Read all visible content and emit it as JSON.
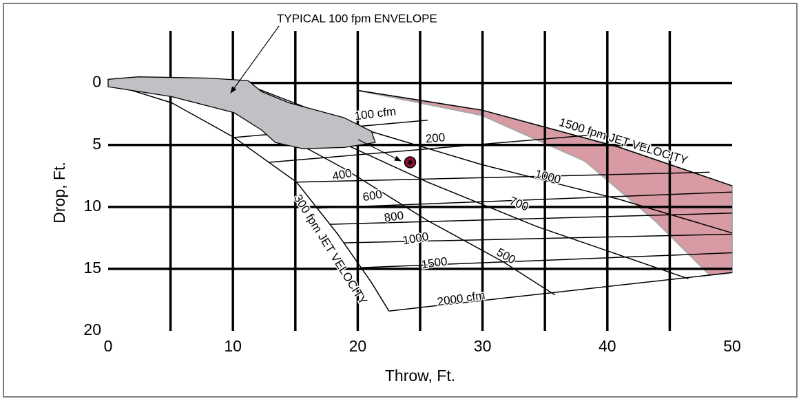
{
  "chart_data": {
    "type": "line",
    "xlabel": "Throw, Ft.",
    "ylabel": "Drop, Ft.",
    "annotation": "TYPICAL 100 fpm ENVELOPE",
    "xlim": [
      0,
      50
    ],
    "ylim": [
      20,
      -4.2
    ],
    "xticks": [
      0,
      10,
      20,
      30,
      40,
      50
    ],
    "yticks": [
      0,
      5,
      10,
      15,
      20
    ],
    "xgrid": [
      5,
      10,
      15,
      20,
      25,
      30,
      35,
      40,
      45
    ],
    "ygrid": [
      0,
      5,
      10,
      15
    ],
    "grid": true,
    "line_color": "#000000",
    "band": {
      "color": "#d89aa3",
      "edge": "#a8a8a8",
      "x": [
        20,
        30,
        41,
        50,
        50,
        48.2,
        43.8,
        38.2,
        29.9
      ],
      "y": [
        0.6,
        2.2,
        5.2,
        8.3,
        15.3,
        15.5,
        11.1,
        6.3,
        2.6
      ]
    },
    "envelope": {
      "color": "#bfc1c4",
      "x": [
        0,
        2.4,
        7.9,
        11.2,
        12.3,
        14.5,
        18.9,
        21.1,
        21.4,
        18.9,
        15.6,
        13.4,
        12.3,
        10.1,
        5.1,
        0
      ],
      "y": [
        -0.3,
        -0.5,
        -0.4,
        -0.2,
        0.7,
        1.6,
        2.8,
        3.9,
        4.8,
        5.2,
        5.3,
        4.8,
        3.8,
        2.4,
        1.1,
        0.3
      ]
    },
    "point": {
      "x": 24.2,
      "y": 6.4,
      "color": "#8b1030"
    },
    "curves": [
      {
        "label": "300 fpm JET VELOCITY",
        "x": [
          0,
          5.1,
          10.1,
          15.1,
          18.4,
          21.1,
          22.5
        ],
        "y": [
          0,
          1.6,
          4.4,
          8,
          12.2,
          16.1,
          18.4
        ]
      },
      {
        "label": "1500 fpm JET VELOCITY",
        "x": [
          20,
          30,
          41,
          50
        ],
        "y": [
          0.6,
          2.2,
          5.2,
          8.3
        ]
      },
      {
        "label": "2000 cfm",
        "x": [
          22.5,
          35.8,
          50
        ],
        "y": [
          18.4,
          16.9,
          15.3
        ]
      },
      {
        "label": "100 cfm",
        "x": [
          10.1,
          25.6
        ],
        "y": [
          4.4,
          3.0
        ]
      },
      {
        "label": "200",
        "x": [
          12.9,
          39.9
        ],
        "y": [
          6.4,
          4.1
        ]
      },
      {
        "label": "400",
        "x": [
          15.1,
          48.2
        ],
        "y": [
          8.0,
          7.2
        ]
      },
      {
        "label": "600",
        "x": [
          16.7,
          50
        ],
        "y": [
          10.1,
          8.8
        ]
      },
      {
        "label": "800",
        "x": [
          17.8,
          50
        ],
        "y": [
          11.4,
          10.5
        ]
      },
      {
        "label": "1000",
        "x": [
          18.9,
          50
        ],
        "y": [
          12.9,
          12.2
        ]
      },
      {
        "label": "1500",
        "x": [
          20.3,
          50
        ],
        "y": [
          14.9,
          13.7
        ]
      },
      {
        "label": "1000",
        "x": [
          11.8,
          20,
          30,
          41,
          50
        ],
        "y": [
          0.4,
          3.6,
          6.6,
          9.4,
          12.1
        ]
      },
      {
        "label": "700",
        "x": [
          11.2,
          18.9,
          25.6,
          34.4,
          46.5
        ],
        "y": [
          1.6,
          4.9,
          8,
          11.6,
          15.8
        ]
      },
      {
        "label": "500",
        "x": [
          12.3,
          18.9,
          25.6,
          31.6,
          35.8
        ],
        "y": [
          3.3,
          6.9,
          11.1,
          14.4,
          17.1
        ]
      }
    ]
  }
}
